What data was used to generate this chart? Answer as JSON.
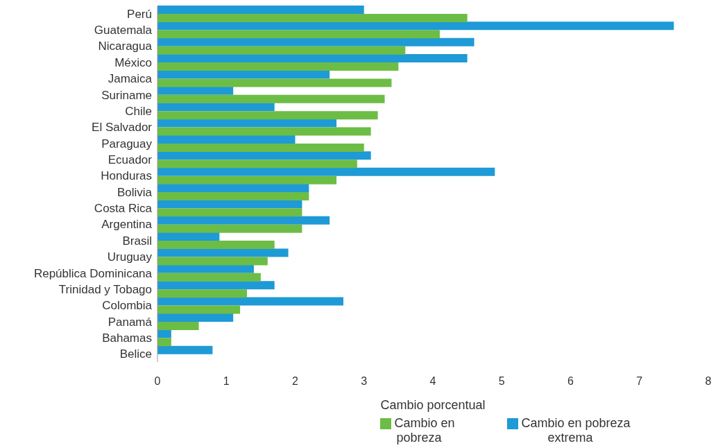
{
  "chart_data": {
    "type": "bar",
    "orientation": "horizontal",
    "xlabel": "Cambio porcentual",
    "categories": [
      "Perú",
      "Guatemala",
      "Nicaragua",
      "México",
      "Jamaica",
      "Suriname",
      "Chile",
      "El Salvador",
      "Paraguay",
      "Ecuador",
      "Honduras",
      "Bolivia",
      "Costa Rica",
      "Argentina",
      "Brasil",
      "Uruguay",
      "República Dominicana",
      "Trinidad y Tobago",
      "Colombia",
      "Panamá",
      "Bahamas",
      "Belice"
    ],
    "series": [
      {
        "name": "Cambio en pobreza extrema",
        "color": "#1e9ad6",
        "values": [
          3.0,
          7.5,
          4.6,
          4.5,
          2.5,
          1.1,
          1.7,
          2.6,
          2.0,
          3.1,
          4.9,
          2.2,
          2.1,
          2.5,
          0.9,
          1.9,
          1.4,
          1.7,
          2.7,
          1.1,
          0.2,
          0.8
        ]
      },
      {
        "name": "Cambio en pobreza",
        "color": "#6cbd45",
        "values": [
          4.5,
          4.1,
          3.6,
          3.5,
          3.4,
          3.3,
          3.2,
          3.1,
          3.0,
          2.9,
          2.6,
          2.2,
          2.1,
          2.1,
          1.7,
          1.6,
          1.5,
          1.3,
          1.2,
          0.6,
          0.2,
          null
        ]
      }
    ],
    "xlim": [
      0,
      8
    ],
    "xticks": [
      0,
      1,
      2,
      3,
      4,
      5,
      6,
      7,
      8
    ],
    "grid": false,
    "legend": "bottom"
  }
}
